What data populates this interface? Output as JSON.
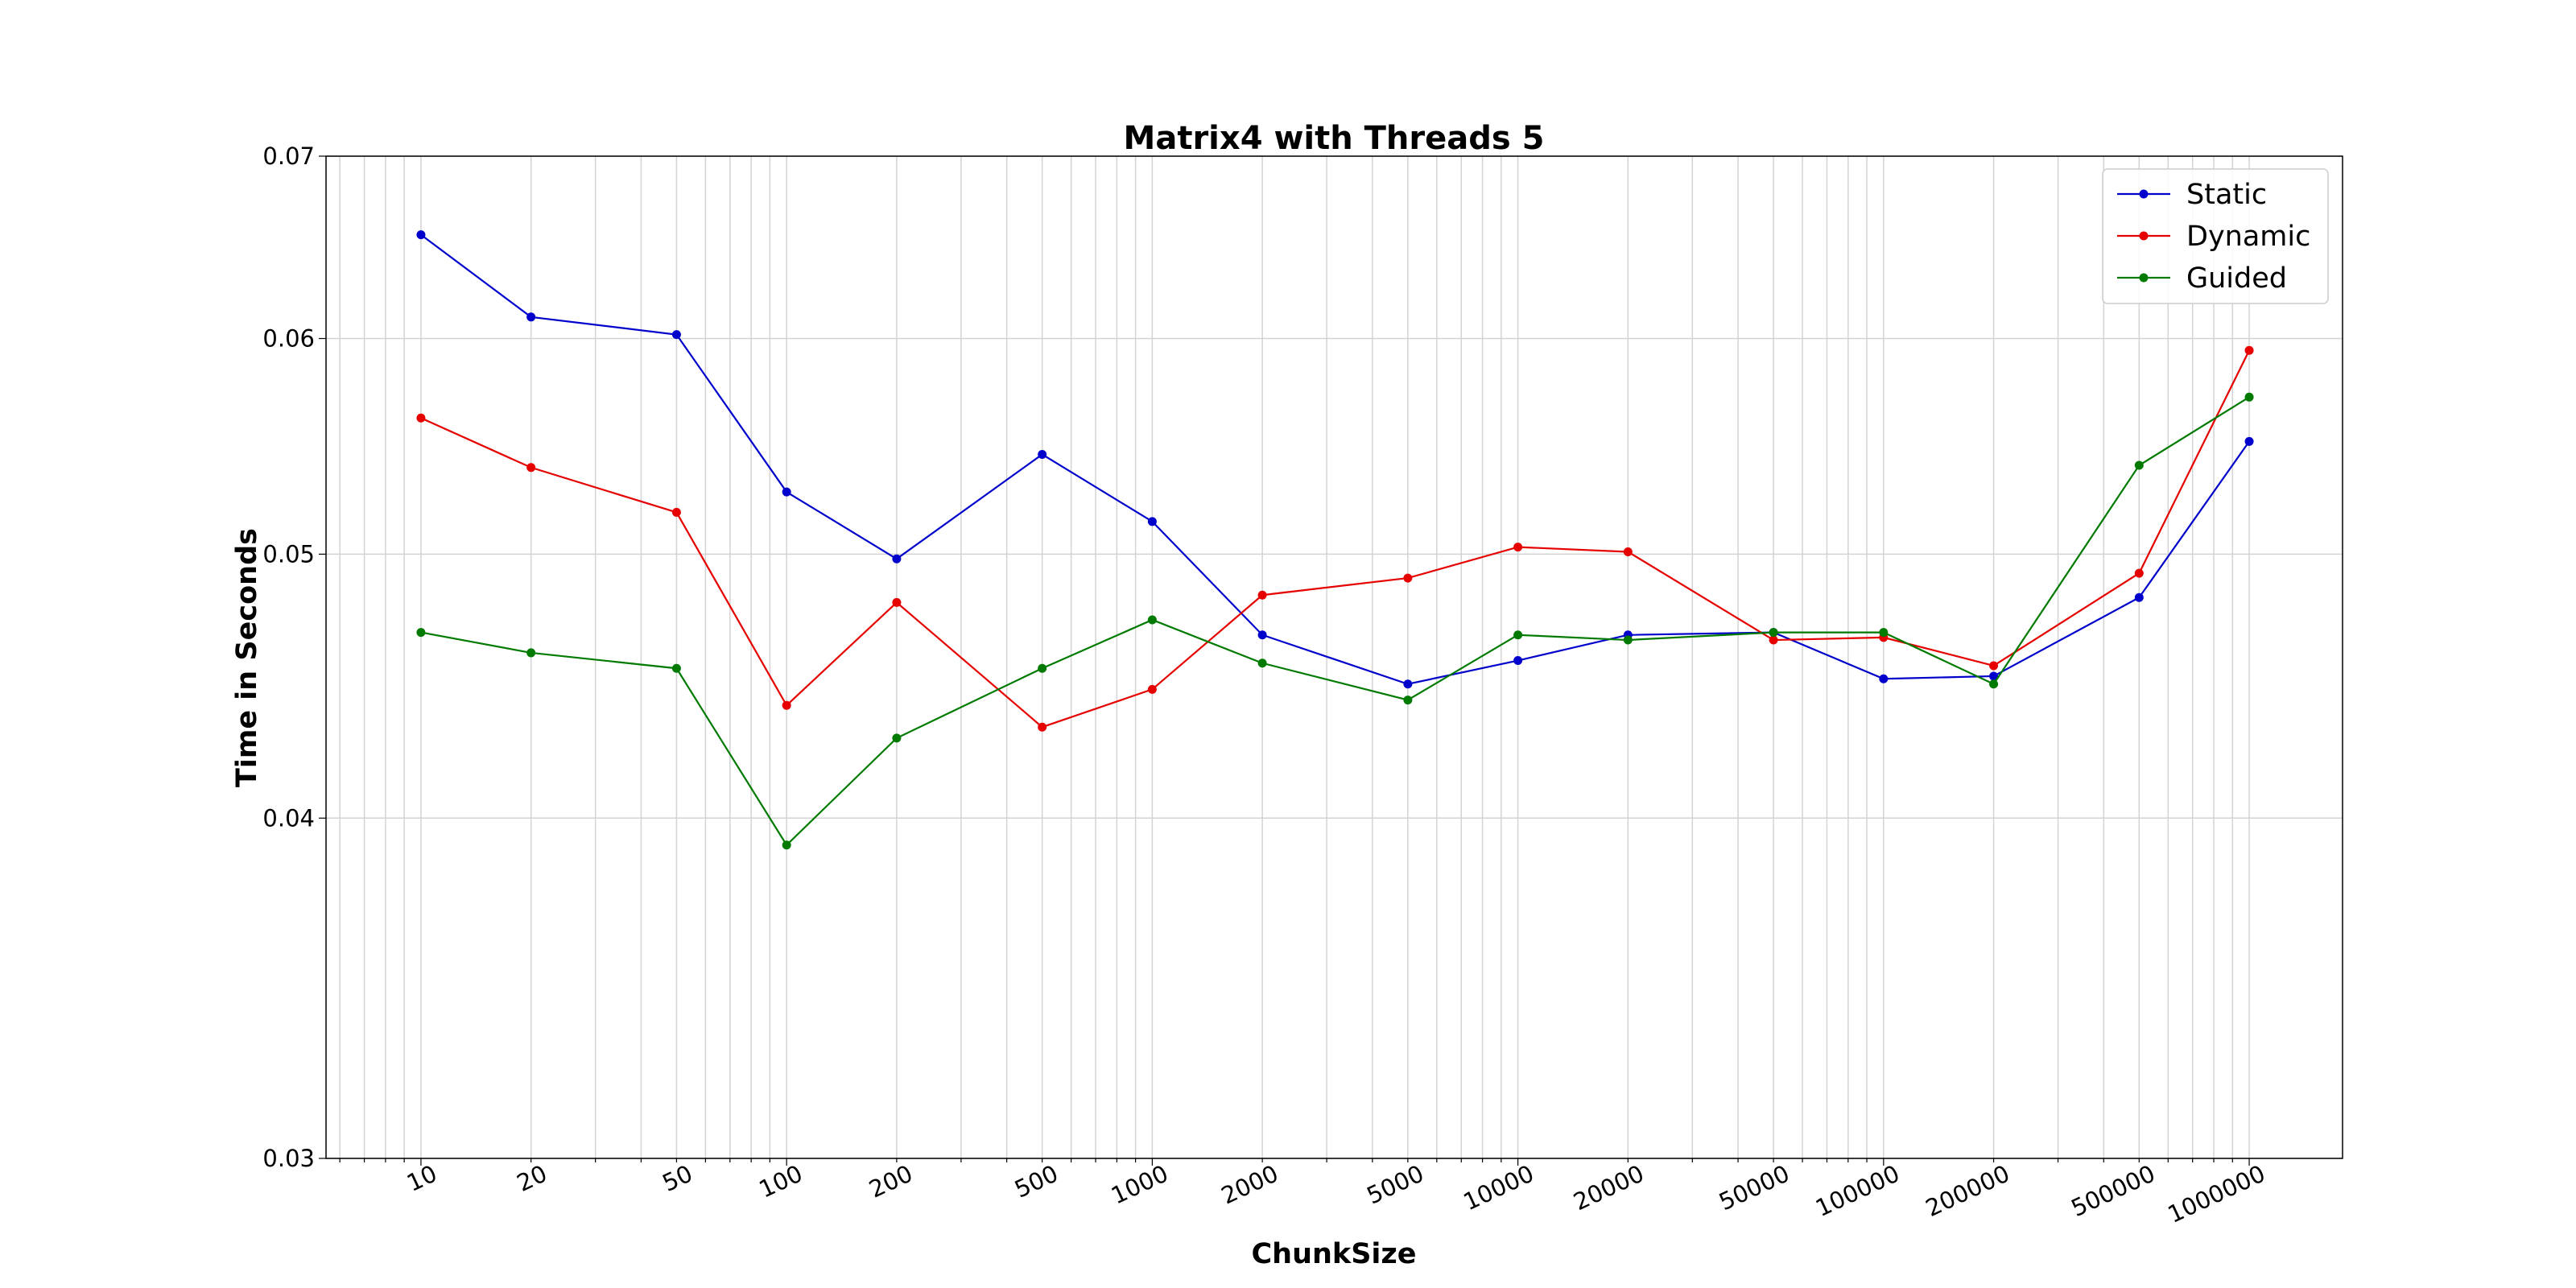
{
  "chart_data": {
    "type": "line",
    "title": "Matrix4 with Threads 5",
    "xlabel": "ChunkSize",
    "ylabel": "Time in Seconds",
    "x_scale": "log",
    "y_scale": "log",
    "categories": [
      "10",
      "20",
      "50",
      "100",
      "200",
      "500",
      "1000",
      "2000",
      "5000",
      "10000",
      "20000",
      "50000",
      "100000",
      "200000",
      "500000",
      "1000000"
    ],
    "x": [
      10,
      20,
      50,
      100,
      200,
      500,
      1000,
      2000,
      5000,
      10000,
      20000,
      50000,
      100000,
      200000,
      500000,
      1000000
    ],
    "xlim": [
      5.5,
      1800000
    ],
    "ylim": [
      0.03,
      0.07
    ],
    "yticks": [
      "0.03",
      "0.04",
      "0.05",
      "0.06",
      "0.07"
    ],
    "grid": true,
    "legend_position": "top-right",
    "series": [
      {
        "name": "Static",
        "color": "#0000cc",
        "values": [
          0.0655,
          0.0611,
          0.0602,
          0.0527,
          0.0498,
          0.0544,
          0.0514,
          0.0467,
          0.0448,
          0.0457,
          0.0467,
          0.0468,
          0.045,
          0.0451,
          0.0482,
          0.055
        ]
      },
      {
        "name": "Dynamic",
        "color": "#e60000",
        "values": [
          0.0561,
          0.0538,
          0.0518,
          0.044,
          0.048,
          0.0432,
          0.0446,
          0.0483,
          0.049,
          0.0503,
          0.0501,
          0.0465,
          0.0466,
          0.0455,
          0.0492,
          0.0594
        ]
      },
      {
        "name": "Guided",
        "color": "#007a00",
        "values": [
          0.0468,
          0.046,
          0.0454,
          0.0391,
          0.0428,
          0.0454,
          0.0473,
          0.0456,
          0.0442,
          0.0467,
          0.0465,
          0.0468,
          0.0468,
          0.0448,
          0.0539,
          0.0571
        ]
      }
    ]
  }
}
